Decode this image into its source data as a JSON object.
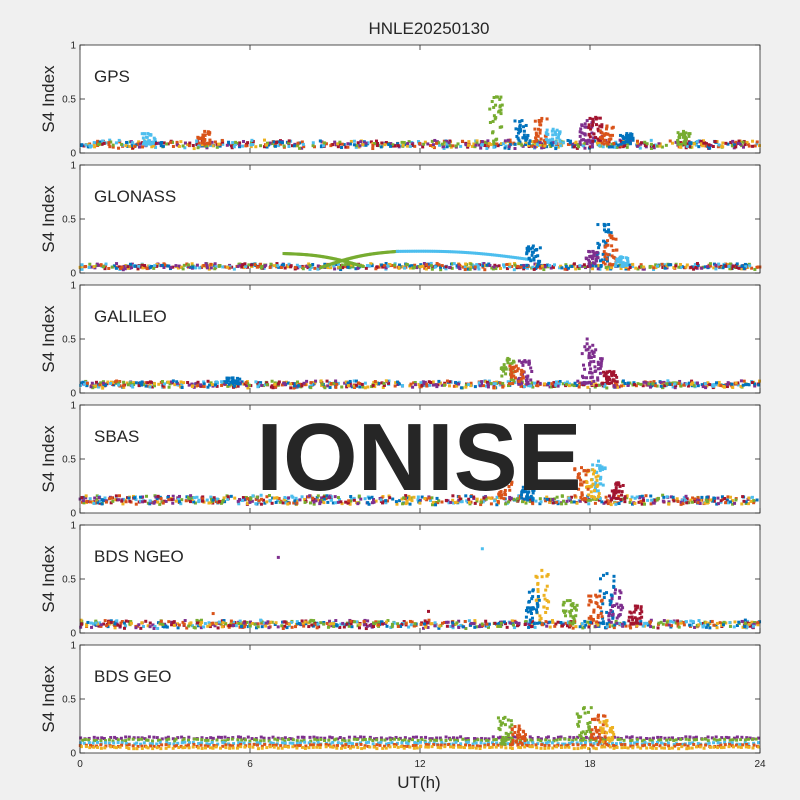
{
  "figure": {
    "title": "HNLE20250130",
    "xlabel": "UT(h)",
    "ylabel": "S4 Index",
    "watermark": "IONISE",
    "background": "#f0f0f0",
    "axes_background": "#ffffff"
  },
  "chart_data": [
    {
      "type": "scatter",
      "label": "GPS",
      "xlim": [
        0,
        24
      ],
      "ylim": [
        0,
        1
      ],
      "xticks": [
        0,
        6,
        12,
        18,
        24
      ],
      "yticks": [
        0,
        0.5,
        1
      ],
      "ytick_labels": [
        "0",
        "0.5",
        "1"
      ],
      "baseline": 0.08,
      "noise": 0.06,
      "spikes": [
        {
          "x": 14.7,
          "y": 0.52,
          "color": "#77ac30"
        },
        {
          "x": 15.6,
          "y": 0.3,
          "color": "#0072bd"
        },
        {
          "x": 16.3,
          "y": 0.32,
          "color": "#d95319"
        },
        {
          "x": 16.7,
          "y": 0.22,
          "color": "#4dbeee"
        },
        {
          "x": 17.9,
          "y": 0.3,
          "color": "#7e2f8e"
        },
        {
          "x": 18.2,
          "y": 0.33,
          "color": "#a2142f"
        },
        {
          "x": 18.6,
          "y": 0.25,
          "color": "#d95319"
        },
        {
          "x": 19.3,
          "y": 0.18,
          "color": "#0072bd"
        },
        {
          "x": 4.4,
          "y": 0.2,
          "color": "#d95319"
        },
        {
          "x": 2.4,
          "y": 0.18,
          "color": "#4dbeee"
        },
        {
          "x": 21.3,
          "y": 0.2,
          "color": "#77ac30"
        }
      ]
    },
    {
      "type": "scatter",
      "label": "GLONASS",
      "xlim": [
        0,
        24
      ],
      "ylim": [
        0,
        1
      ],
      "xticks": [
        0,
        6,
        12,
        18,
        24
      ],
      "yticks": [
        0,
        0.5,
        1
      ],
      "ytick_labels": [
        "0",
        "0.5",
        "1"
      ],
      "baseline": 0.06,
      "noise": 0.04,
      "spikes": [
        {
          "x": 18.5,
          "y": 0.45,
          "color": "#0072bd"
        },
        {
          "x": 18.7,
          "y": 0.35,
          "color": "#d95319"
        },
        {
          "x": 16.0,
          "y": 0.25,
          "color": "#0072bd"
        },
        {
          "x": 18.1,
          "y": 0.2,
          "color": "#7e2f8e"
        },
        {
          "x": 19.1,
          "y": 0.15,
          "color": "#4dbeee"
        }
      ],
      "arcs": [
        {
          "x0": 7.2,
          "x1": 10.0,
          "y0": 0.18,
          "y1": 0.06,
          "color": "#77ac30"
        },
        {
          "x0": 8.5,
          "x1": 11.2,
          "y0": 0.05,
          "y1": 0.2,
          "color": "#77ac30"
        },
        {
          "x0": 11.2,
          "x1": 16.0,
          "y0": 0.2,
          "y1": 0.12,
          "color": "#4dbeee"
        }
      ]
    },
    {
      "type": "scatter",
      "label": "GALILEO",
      "xlim": [
        0,
        24
      ],
      "ylim": [
        0,
        1
      ],
      "xticks": [
        0,
        6,
        12,
        18,
        24
      ],
      "yticks": [
        0,
        0.5,
        1
      ],
      "ytick_labels": [
        "0",
        "0.5",
        "1"
      ],
      "baseline": 0.08,
      "noise": 0.05,
      "spikes": [
        {
          "x": 17.9,
          "y": 0.5,
          "color": "#7e2f8e"
        },
        {
          "x": 18.2,
          "y": 0.4,
          "color": "#7e2f8e"
        },
        {
          "x": 15.1,
          "y": 0.32,
          "color": "#77ac30"
        },
        {
          "x": 15.7,
          "y": 0.3,
          "color": "#7e2f8e"
        },
        {
          "x": 15.4,
          "y": 0.25,
          "color": "#d95319"
        },
        {
          "x": 18.7,
          "y": 0.2,
          "color": "#a2142f"
        },
        {
          "x": 5.4,
          "y": 0.14,
          "color": "#0072bd"
        }
      ]
    },
    {
      "type": "scatter",
      "label": "SBAS",
      "xlim": [
        0,
        24
      ],
      "ylim": [
        0,
        1
      ],
      "xticks": [
        0,
        6,
        12,
        18,
        24
      ],
      "yticks": [
        0,
        0.5,
        1
      ],
      "ytick_labels": [
        "0",
        "0.5",
        "1"
      ],
      "baseline": 0.12,
      "noise": 0.07,
      "spikes": [
        {
          "x": 18.3,
          "y": 0.48,
          "color": "#4dbeee"
        },
        {
          "x": 18.1,
          "y": 0.4,
          "color": "#edb120"
        },
        {
          "x": 17.7,
          "y": 0.42,
          "color": "#d95319"
        },
        {
          "x": 15.0,
          "y": 0.32,
          "color": "#d95319"
        },
        {
          "x": 19.0,
          "y": 0.28,
          "color": "#a2142f"
        },
        {
          "x": 15.8,
          "y": 0.25,
          "color": "#0072bd"
        }
      ]
    },
    {
      "type": "scatter",
      "label": "BDS NGEO",
      "xlim": [
        0,
        24
      ],
      "ylim": [
        0,
        1
      ],
      "xticks": [
        0,
        6,
        12,
        18,
        24
      ],
      "yticks": [
        0,
        0.5,
        1
      ],
      "ytick_labels": [
        "0",
        "0.5",
        "1"
      ],
      "baseline": 0.08,
      "noise": 0.06,
      "spikes": [
        {
          "x": 16.3,
          "y": 0.58,
          "color": "#edb120"
        },
        {
          "x": 16.0,
          "y": 0.4,
          "color": "#0072bd"
        },
        {
          "x": 18.6,
          "y": 0.55,
          "color": "#0072bd"
        },
        {
          "x": 18.9,
          "y": 0.4,
          "color": "#7e2f8e"
        },
        {
          "x": 18.2,
          "y": 0.35,
          "color": "#d95319"
        },
        {
          "x": 17.3,
          "y": 0.3,
          "color": "#77ac30"
        },
        {
          "x": 19.6,
          "y": 0.25,
          "color": "#a2142f"
        }
      ],
      "outliers": [
        {
          "x": 7.0,
          "y": 0.7,
          "color": "#7e2f8e"
        },
        {
          "x": 14.2,
          "y": 0.78,
          "color": "#4dbeee"
        },
        {
          "x": 12.3,
          "y": 0.2,
          "color": "#a2142f"
        },
        {
          "x": 4.7,
          "y": 0.18,
          "color": "#d95319"
        }
      ]
    },
    {
      "type": "scatter",
      "label": "BDS GEO",
      "xlim": [
        0,
        24
      ],
      "ylim": [
        0,
        1
      ],
      "xticks": [
        0,
        6,
        12,
        18,
        24
      ],
      "yticks": [
        0,
        0.5,
        1
      ],
      "ytick_labels": [
        "0",
        "0.5",
        "1"
      ],
      "bands": [
        {
          "y": 0.14,
          "color": "#7e2f8e"
        },
        {
          "y": 0.12,
          "color": "#77ac30"
        },
        {
          "y": 0.09,
          "color": "#4dbeee"
        },
        {
          "y": 0.07,
          "color": "#d95319"
        },
        {
          "y": 0.05,
          "color": "#edb120"
        }
      ],
      "spikes": [
        {
          "x": 15.0,
          "y": 0.33,
          "color": "#77ac30"
        },
        {
          "x": 17.8,
          "y": 0.42,
          "color": "#77ac30"
        },
        {
          "x": 18.3,
          "y": 0.35,
          "color": "#d95319"
        },
        {
          "x": 18.6,
          "y": 0.3,
          "color": "#edb120"
        },
        {
          "x": 15.5,
          "y": 0.25,
          "color": "#d95319"
        }
      ]
    }
  ]
}
